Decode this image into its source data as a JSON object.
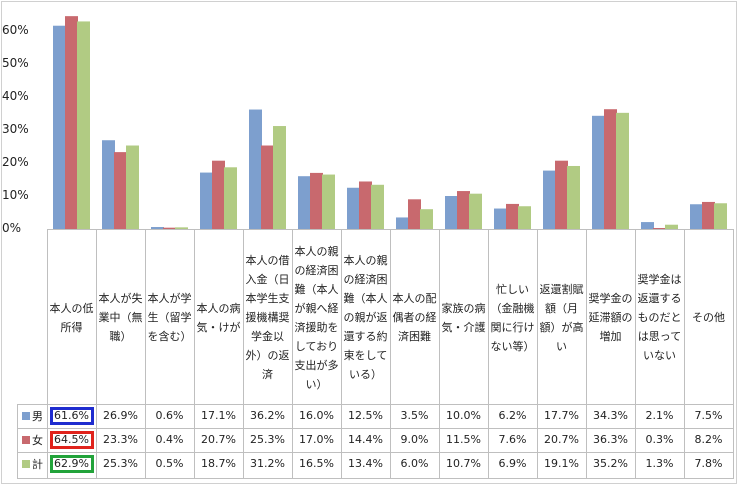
{
  "chart_data": {
    "type": "bar",
    "categories": [
      "本人の低所得",
      "本人が失業中（無職）",
      "本人が学生（留学を含む）",
      "本人の病気・けが",
      "本人の借入金（日本学生支援機構奨学金以外）の返済",
      "本人の親の経済困難（本人が親へ経済援助をしており支出が多い）",
      "本人の親の経済困難（本人の親が返還する約束をしている）",
      "本人の配偶者の経済困難",
      "家族の病気・介護",
      "忙しい（金融機関に行けない等）",
      "返還割賦額（月額）が高い",
      "奨学金の延滞額の増加",
      "奨学金は返還するものだとは思っていない",
      "その他"
    ],
    "series": [
      {
        "name": "男",
        "color": "#7d9fce",
        "values": [
          61.6,
          26.9,
          0.6,
          17.1,
          36.2,
          16.0,
          12.5,
          3.5,
          10.0,
          6.2,
          17.7,
          34.3,
          2.1,
          7.5
        ],
        "labels": [
          "61.6%",
          "26.9%",
          "0.6%",
          "17.1%",
          "36.2%",
          "16.0%",
          "12.5%",
          "3.5%",
          "10.0%",
          "6.2%",
          "17.7%",
          "34.3%",
          "2.1%",
          "7.5%"
        ]
      },
      {
        "name": "女",
        "color": "#c8696e",
        "values": [
          64.5,
          23.3,
          0.4,
          20.7,
          25.3,
          17.0,
          14.4,
          9.0,
          11.5,
          7.6,
          20.7,
          36.3,
          0.3,
          8.2
        ],
        "labels": [
          "64.5%",
          "23.3%",
          "0.4%",
          "20.7%",
          "25.3%",
          "17.0%",
          "14.4%",
          "9.0%",
          "11.5%",
          "7.6%",
          "20.7%",
          "36.3%",
          "0.3%",
          "8.2%"
        ]
      },
      {
        "name": "計",
        "color": "#b1cb83",
        "values": [
          62.9,
          25.3,
          0.5,
          18.7,
          31.2,
          16.5,
          13.4,
          6.0,
          10.7,
          6.9,
          19.1,
          35.2,
          1.3,
          7.8
        ],
        "labels": [
          "62.9%",
          "25.3%",
          "0.5%",
          "18.7%",
          "31.2%",
          "16.5%",
          "13.4%",
          "6.0%",
          "10.7%",
          "6.9%",
          "19.1%",
          "35.2%",
          "1.3%",
          "7.8%"
        ]
      }
    ],
    "yticks": [
      "0%",
      "10%",
      "20%",
      "30%",
      "40%",
      "50%",
      "60%"
    ],
    "ylim": [
      0,
      65
    ],
    "grid": false,
    "legend": "data-table",
    "highlight_colors": [
      "#1f2ccf",
      "#e0231c",
      "#22a33a"
    ]
  }
}
